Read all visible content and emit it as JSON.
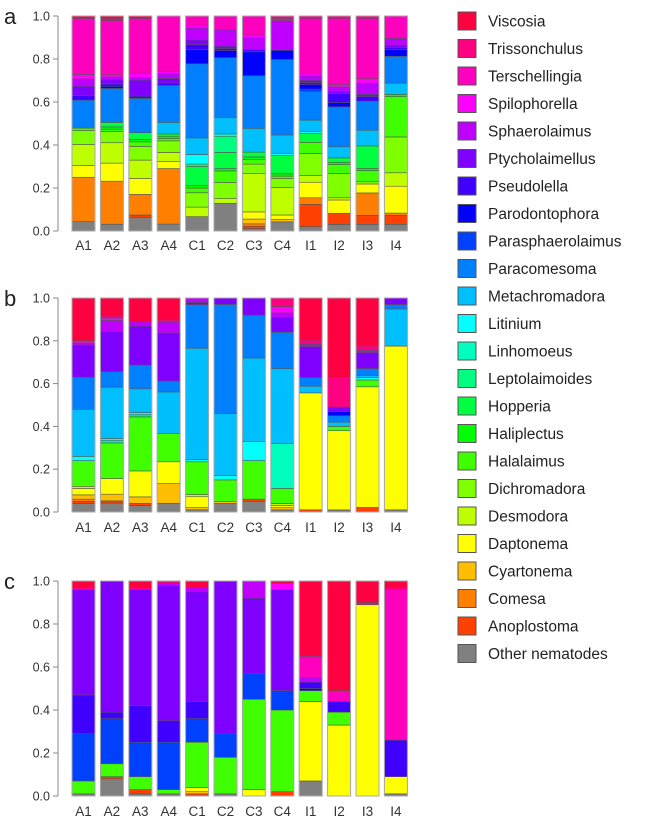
{
  "chart_data": {
    "type": "bar",
    "stacked": true,
    "title": "",
    "xlabel": "",
    "ylabel": "",
    "ylim": [
      0,
      1
    ],
    "yticks": [
      "0.0",
      "0.2",
      "0.4",
      "0.6",
      "0.8",
      "1.0"
    ],
    "categories": [
      "A1",
      "A2",
      "A3",
      "A4",
      "C1",
      "C2",
      "C3",
      "C4",
      "I1",
      "I2",
      "I3",
      "I4"
    ],
    "legend_position": "right",
    "legend": [
      {
        "name": "Viscosia",
        "color": "#ff0040"
      },
      {
        "name": "Trissonchulus",
        "color": "#ff0080"
      },
      {
        "name": "Terschellingia",
        "color": "#ff00bf"
      },
      {
        "name": "Spilophorella",
        "color": "#ff00ff"
      },
      {
        "name": "Sphaerolaimus",
        "color": "#bf00ff"
      },
      {
        "name": "Ptycholaimellus",
        "color": "#8000ff"
      },
      {
        "name": "Pseudolella",
        "color": "#4000ff"
      },
      {
        "name": "Parodontophora",
        "color": "#0000ff"
      },
      {
        "name": "Parasphaerolaimus",
        "color": "#0040ff"
      },
      {
        "name": "Paracomesoma",
        "color": "#0080ff"
      },
      {
        "name": "Metachromadora",
        "color": "#00bfff"
      },
      {
        "name": "Litinium",
        "color": "#00ffff"
      },
      {
        "name": "Linhomoeus",
        "color": "#00ffbf"
      },
      {
        "name": "Leptolaimoides",
        "color": "#00ff80"
      },
      {
        "name": "Hopperia",
        "color": "#00ff40"
      },
      {
        "name": "Haliplectus",
        "color": "#00ff00"
      },
      {
        "name": "Halalaimus",
        "color": "#40ff00"
      },
      {
        "name": "Dichromadora",
        "color": "#80ff00"
      },
      {
        "name": "Desmodora",
        "color": "#bfff00"
      },
      {
        "name": "Daptonema",
        "color": "#ffff00"
      },
      {
        "name": "Cyartonema",
        "color": "#ffbf00"
      },
      {
        "name": "Comesa",
        "color": "#ff8000"
      },
      {
        "name": "Anoplostoma",
        "color": "#ff4000"
      },
      {
        "name": "Other nematodes",
        "color": "#808080"
      }
    ],
    "panels": [
      {
        "label": "a",
        "series_values_by_category": {
          "A1": [
            0.01,
            0.0,
            0.24,
            0.02,
            0.03,
            0.04,
            0.02,
            0.0,
            0.0,
            0.12,
            0.0,
            0.0,
            0.0,
            0.0,
            0.0,
            0.0,
            0.01,
            0.06,
            0.09,
            0.05,
            0.0,
            0.19,
            0.0,
            0.04
          ],
          "A2": [
            0.01,
            0.01,
            0.24,
            0.01,
            0.01,
            0.02,
            0.01,
            0.01,
            0.0,
            0.15,
            0.0,
            0.0,
            0.0,
            0.0,
            0.02,
            0.01,
            0.01,
            0.05,
            0.09,
            0.08,
            0.0,
            0.19,
            0.0,
            0.03
          ],
          "A3": [
            0.01,
            0.0,
            0.24,
            0.02,
            0.01,
            0.07,
            0.01,
            0.0,
            0.0,
            0.15,
            0.0,
            0.0,
            0.0,
            0.0,
            0.03,
            0.01,
            0.02,
            0.06,
            0.08,
            0.07,
            0.0,
            0.09,
            0.01,
            0.06
          ],
          "A4": [
            0.0,
            0.0,
            0.24,
            0.01,
            0.02,
            0.02,
            0.01,
            0.0,
            0.0,
            0.16,
            0.05,
            0.0,
            0.0,
            0.0,
            0.01,
            0.01,
            0.01,
            0.05,
            0.04,
            0.03,
            0.0,
            0.24,
            0.0,
            0.03
          ],
          "C1": [
            0.0,
            0.0,
            0.04,
            0.01,
            0.05,
            0.02,
            0.02,
            0.06,
            0.0,
            0.31,
            0.07,
            0.04,
            0.0,
            0.01,
            0.08,
            0.01,
            0.02,
            0.06,
            0.04,
            0.0,
            0.0,
            0.0,
            0.0,
            0.06
          ],
          "C2": [
            0.0,
            0.0,
            0.06,
            0.0,
            0.07,
            0.01,
            0.01,
            0.03,
            0.0,
            0.26,
            0.07,
            0.01,
            0.0,
            0.07,
            0.07,
            0.01,
            0.05,
            0.07,
            0.02,
            0.0,
            0.0,
            0.0,
            0.0,
            0.12
          ],
          "C3": [
            0.0,
            0.0,
            0.08,
            0.01,
            0.05,
            0.0,
            0.01,
            0.1,
            0.0,
            0.22,
            0.1,
            0.0,
            0.0,
            0.0,
            0.02,
            0.01,
            0.02,
            0.04,
            0.16,
            0.03,
            0.02,
            0.01,
            0.01,
            0.01
          ],
          "C4": [
            0.0,
            0.01,
            0.01,
            0.0,
            0.13,
            0.0,
            0.0,
            0.04,
            0.0,
            0.33,
            0.08,
            0.01,
            0.0,
            0.0,
            0.08,
            0.01,
            0.01,
            0.04,
            0.12,
            0.02,
            0.01,
            0.0,
            0.0,
            0.04
          ],
          "I1": [
            0.0,
            0.01,
            0.25,
            0.01,
            0.02,
            0.01,
            0.01,
            0.02,
            0.01,
            0.13,
            0.05,
            0.01,
            0.0,
            0.0,
            0.04,
            0.0,
            0.05,
            0.1,
            0.03,
            0.07,
            0.0,
            0.03,
            0.1,
            0.02
          ],
          "I2": [
            0.0,
            0.01,
            0.3,
            0.01,
            0.02,
            0.01,
            0.04,
            0.02,
            0.0,
            0.18,
            0.05,
            0.0,
            0.0,
            0.0,
            0.02,
            0.01,
            0.04,
            0.11,
            0.01,
            0.06,
            0.0,
            0.0,
            0.05,
            0.03
          ],
          "I3": [
            0.0,
            0.01,
            0.27,
            0.02,
            0.05,
            0.01,
            0.02,
            0.0,
            0.0,
            0.13,
            0.07,
            0.0,
            0.0,
            0.0,
            0.1,
            0.01,
            0.05,
            0.01,
            0.0,
            0.04,
            0.0,
            0.1,
            0.04,
            0.03
          ],
          "I4": [
            0.0,
            0.0,
            0.1,
            0.0,
            0.03,
            0.01,
            0.01,
            0.03,
            0.0,
            0.12,
            0.05,
            0.0,
            0.0,
            0.0,
            0.0,
            0.01,
            0.18,
            0.16,
            0.06,
            0.12,
            0.0,
            0.01,
            0.04,
            0.03
          ]
        }
      },
      {
        "label": "b",
        "series_values_by_category": {
          "A1": [
            0.2,
            0.0,
            0.0,
            0.01,
            0.01,
            0.15,
            0.0,
            0.0,
            0.0,
            0.15,
            0.22,
            0.02,
            0.0,
            0.0,
            0.0,
            0.0,
            0.12,
            0.0,
            0.01,
            0.03,
            0.02,
            0.01,
            0.01,
            0.04
          ],
          "A2": [
            0.08,
            0.01,
            0.0,
            0.01,
            0.05,
            0.18,
            0.0,
            0.0,
            0.0,
            0.07,
            0.23,
            0.01,
            0.0,
            0.01,
            0.0,
            0.0,
            0.16,
            0.0,
            0.0,
            0.07,
            0.03,
            0.0,
            0.01,
            0.04
          ],
          "A3": [
            0.11,
            0.0,
            0.0,
            0.0,
            0.02,
            0.18,
            0.0,
            0.0,
            0.0,
            0.11,
            0.11,
            0.01,
            0.0,
            0.0,
            0.01,
            0.0,
            0.25,
            0.0,
            0.0,
            0.12,
            0.03,
            0.0,
            0.01,
            0.03
          ],
          "A4": [
            0.1,
            0.01,
            0.0,
            0.0,
            0.05,
            0.22,
            0.0,
            0.0,
            0.0,
            0.05,
            0.19,
            0.0,
            0.0,
            0.0,
            0.0,
            0.0,
            0.13,
            0.0,
            0.0,
            0.1,
            0.09,
            0.0,
            0.0,
            0.04
          ],
          "C1": [
            0.0,
            0.0,
            0.0,
            0.0,
            0.02,
            0.01,
            0.0,
            0.0,
            0.0,
            0.2,
            0.51,
            0.01,
            0.0,
            0.0,
            0.0,
            0.0,
            0.15,
            0.0,
            0.01,
            0.05,
            0.01,
            0.0,
            0.0,
            0.01
          ],
          "C2": [
            0.0,
            0.0,
            0.0,
            0.0,
            0.0,
            0.03,
            0.0,
            0.0,
            0.0,
            0.51,
            0.29,
            0.02,
            0.0,
            0.0,
            0.0,
            0.0,
            0.1,
            0.0,
            0.0,
            0.0,
            0.01,
            0.0,
            0.0,
            0.04
          ],
          "C3": [
            0.0,
            0.0,
            0.0,
            0.0,
            0.0,
            0.08,
            0.0,
            0.0,
            0.0,
            0.2,
            0.39,
            0.09,
            0.0,
            0.0,
            0.0,
            0.0,
            0.18,
            0.0,
            0.0,
            0.0,
            0.0,
            0.0,
            0.01,
            0.05
          ],
          "C4": [
            0.0,
            0.04,
            0.0,
            0.03,
            0.02,
            0.07,
            0.0,
            0.0,
            0.0,
            0.17,
            0.35,
            0.0,
            0.21,
            0.0,
            0.0,
            0.0,
            0.07,
            0.0,
            0.01,
            0.01,
            0.01,
            0.0,
            0.0,
            0.01
          ],
          "I1": [
            0.19,
            0.02,
            0.0,
            0.0,
            0.01,
            0.14,
            0.0,
            0.0,
            0.0,
            0.04,
            0.03,
            0.0,
            0.0,
            0.0,
            0.0,
            0.0,
            0.0,
            0.0,
            0.0,
            0.53,
            0.0,
            0.0,
            0.01,
            0.0
          ],
          "I2": [
            0.37,
            0.14,
            0.0,
            0.0,
            0.0,
            0.02,
            0.0,
            0.02,
            0.0,
            0.03,
            0.02,
            0.0,
            0.0,
            0.0,
            0.0,
            0.0,
            0.02,
            0.0,
            0.0,
            0.37,
            0.0,
            0.0,
            0.0,
            0.01
          ],
          "I3": [
            0.21,
            0.02,
            0.0,
            0.0,
            0.01,
            0.07,
            0.0,
            0.0,
            0.0,
            0.03,
            0.01,
            0.01,
            0.0,
            0.0,
            0.0,
            0.0,
            0.03,
            0.0,
            0.0,
            0.53,
            0.0,
            0.0,
            0.02,
            0.0
          ],
          "I4": [
            0.0,
            0.0,
            0.0,
            0.0,
            0.0,
            0.03,
            0.0,
            0.0,
            0.0,
            0.02,
            0.17,
            0.0,
            0.0,
            0.0,
            0.0,
            0.0,
            0.0,
            0.0,
            0.0,
            0.75,
            0.0,
            0.0,
            0.0,
            0.01
          ]
        }
      },
      {
        "label": "c",
        "series_values_by_category": {
          "A1": [
            0.03,
            0.01,
            0.0,
            0.0,
            0.0,
            0.49,
            0.18,
            0.0,
            0.22,
            0.0,
            0.0,
            0.0,
            0.0,
            0.0,
            0.0,
            0.0,
            0.06,
            0.0,
            0.0,
            0.0,
            0.0,
            0.0,
            0.0,
            0.01
          ],
          "A2": [
            0.0,
            0.0,
            0.0,
            0.0,
            0.0,
            0.61,
            0.03,
            0.0,
            0.21,
            0.0,
            0.0,
            0.0,
            0.0,
            0.0,
            0.0,
            0.0,
            0.06,
            0.0,
            0.0,
            0.0,
            0.0,
            0.0,
            0.01,
            0.08
          ],
          "A3": [
            0.03,
            0.01,
            0.0,
            0.0,
            0.0,
            0.54,
            0.17,
            0.0,
            0.16,
            0.0,
            0.0,
            0.0,
            0.0,
            0.0,
            0.0,
            0.0,
            0.06,
            0.0,
            0.0,
            0.0,
            0.0,
            0.0,
            0.02,
            0.01
          ],
          "A4": [
            0.0,
            0.01,
            0.0,
            0.0,
            0.01,
            0.63,
            0.1,
            0.0,
            0.22,
            0.0,
            0.0,
            0.0,
            0.0,
            0.0,
            0.0,
            0.0,
            0.02,
            0.0,
            0.0,
            0.0,
            0.0,
            0.0,
            0.0,
            0.01
          ],
          "C1": [
            0.03,
            0.0,
            0.0,
            0.0,
            0.02,
            0.51,
            0.08,
            0.0,
            0.11,
            0.0,
            0.0,
            0.0,
            0.0,
            0.0,
            0.0,
            0.0,
            0.21,
            0.0,
            0.0,
            0.02,
            0.01,
            0.0,
            0.01,
            0.0
          ],
          "C2": [
            0.0,
            0.0,
            0.0,
            0.0,
            0.0,
            0.71,
            0.0,
            0.0,
            0.11,
            0.0,
            0.0,
            0.0,
            0.0,
            0.0,
            0.0,
            0.0,
            0.17,
            0.0,
            0.0,
            0.0,
            0.0,
            0.0,
            0.0,
            0.01
          ],
          "C3": [
            0.0,
            0.0,
            0.0,
            0.0,
            0.08,
            0.35,
            0.0,
            0.0,
            0.12,
            0.0,
            0.0,
            0.0,
            0.0,
            0.0,
            0.0,
            0.0,
            0.42,
            0.0,
            0.0,
            0.03,
            0.0,
            0.0,
            0.0,
            0.0
          ],
          "C4": [
            0.01,
            0.0,
            0.0,
            0.03,
            0.0,
            0.47,
            0.0,
            0.0,
            0.09,
            0.0,
            0.0,
            0.0,
            0.0,
            0.0,
            0.0,
            0.0,
            0.38,
            0.0,
            0.0,
            0.0,
            0.0,
            0.0,
            0.02,
            0.0
          ],
          "I1": [
            0.35,
            0.0,
            0.1,
            0.0,
            0.02,
            0.0,
            0.03,
            0.01,
            0.0,
            0.0,
            0.0,
            0.0,
            0.0,
            0.0,
            0.0,
            0.0,
            0.05,
            0.0,
            0.0,
            0.37,
            0.0,
            0.0,
            0.0,
            0.07
          ],
          "I2": [
            0.51,
            0.0,
            0.05,
            0.0,
            0.0,
            0.0,
            0.05,
            0.0,
            0.0,
            0.0,
            0.0,
            0.0,
            0.0,
            0.0,
            0.0,
            0.0,
            0.06,
            0.0,
            0.0,
            0.33,
            0.0,
            0.0,
            0.0,
            0.0
          ],
          "I3": [
            0.1,
            0.01,
            0.0,
            0.0,
            0.0,
            0.0,
            0.0,
            0.0,
            0.0,
            0.0,
            0.0,
            0.0,
            0.0,
            0.0,
            0.0,
            0.0,
            0.0,
            0.0,
            0.0,
            0.89,
            0.0,
            0.0,
            0.0,
            0.0
          ],
          "I4": [
            0.03,
            0.01,
            0.7,
            0.0,
            0.0,
            0.0,
            0.17,
            0.0,
            0.0,
            0.0,
            0.0,
            0.0,
            0.0,
            0.0,
            0.0,
            0.0,
            0.0,
            0.0,
            0.0,
            0.08,
            0.0,
            0.0,
            0.0,
            0.01
          ]
        }
      }
    ]
  }
}
